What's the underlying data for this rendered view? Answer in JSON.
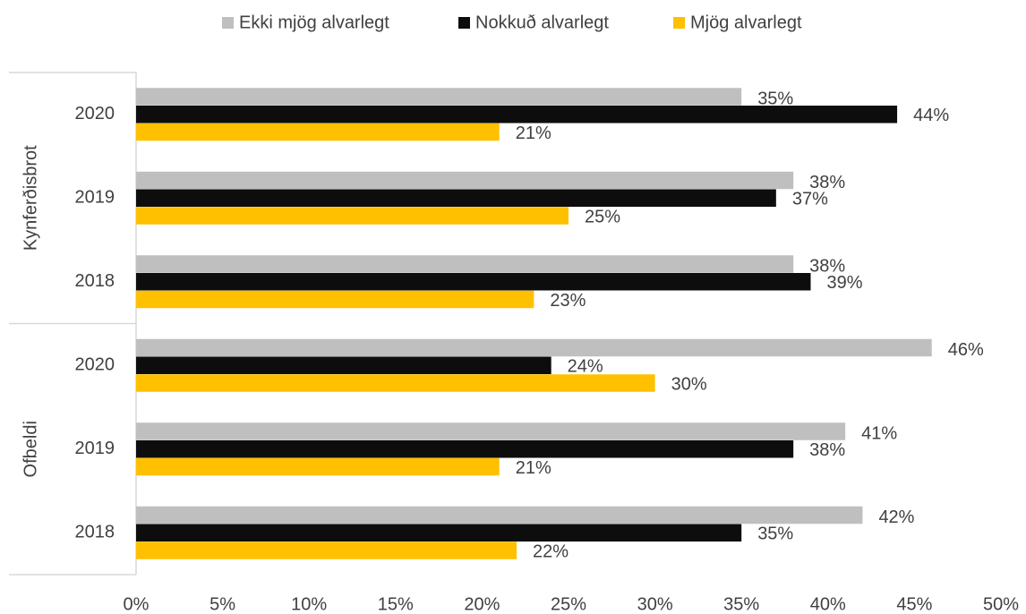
{
  "chart_data": {
    "type": "bar",
    "orientation": "horizontal",
    "groups": [
      "Kynferðisbrot",
      "Ofbeldi"
    ],
    "categories": [
      "2020",
      "2019",
      "2018",
      "2020",
      "2019",
      "2018"
    ],
    "series": [
      {
        "name": "Ekki mjög alvarlegt",
        "color": "#bfbfbf",
        "values": [
          35,
          38,
          38,
          46,
          41,
          42
        ],
        "value_labels": [
          "35%",
          "38%",
          "38%",
          "46%",
          "41%",
          "42%"
        ]
      },
      {
        "name": "Nokkuð alvarlegt",
        "color": "#0d0d0d",
        "values": [
          44,
          37,
          39,
          24,
          38,
          35
        ],
        "value_labels": [
          "44%",
          "37%",
          "39%",
          "24%",
          "38%",
          "35%"
        ]
      },
      {
        "name": "Mjög alvarlegt",
        "color": "#ffc000",
        "values": [
          21,
          25,
          23,
          30,
          21,
          22
        ],
        "value_labels": [
          "21%",
          "25%",
          "23%",
          "30%",
          "21%",
          "22%"
        ]
      }
    ],
    "xlim": [
      0,
      50
    ],
    "xticks": [
      {
        "value": 0,
        "label": "0%"
      },
      {
        "value": 5,
        "label": "5%"
      },
      {
        "value": 10,
        "label": "10%"
      },
      {
        "value": 15,
        "label": "15%"
      },
      {
        "value": 20,
        "label": "20%"
      },
      {
        "value": 25,
        "label": "25%"
      },
      {
        "value": 30,
        "label": "30%"
      },
      {
        "value": 35,
        "label": "35%"
      },
      {
        "value": 40,
        "label": "40%"
      },
      {
        "value": 45,
        "label": "45%"
      },
      {
        "value": 50,
        "label": "50%"
      }
    ],
    "legend": "top",
    "grid": false
  }
}
